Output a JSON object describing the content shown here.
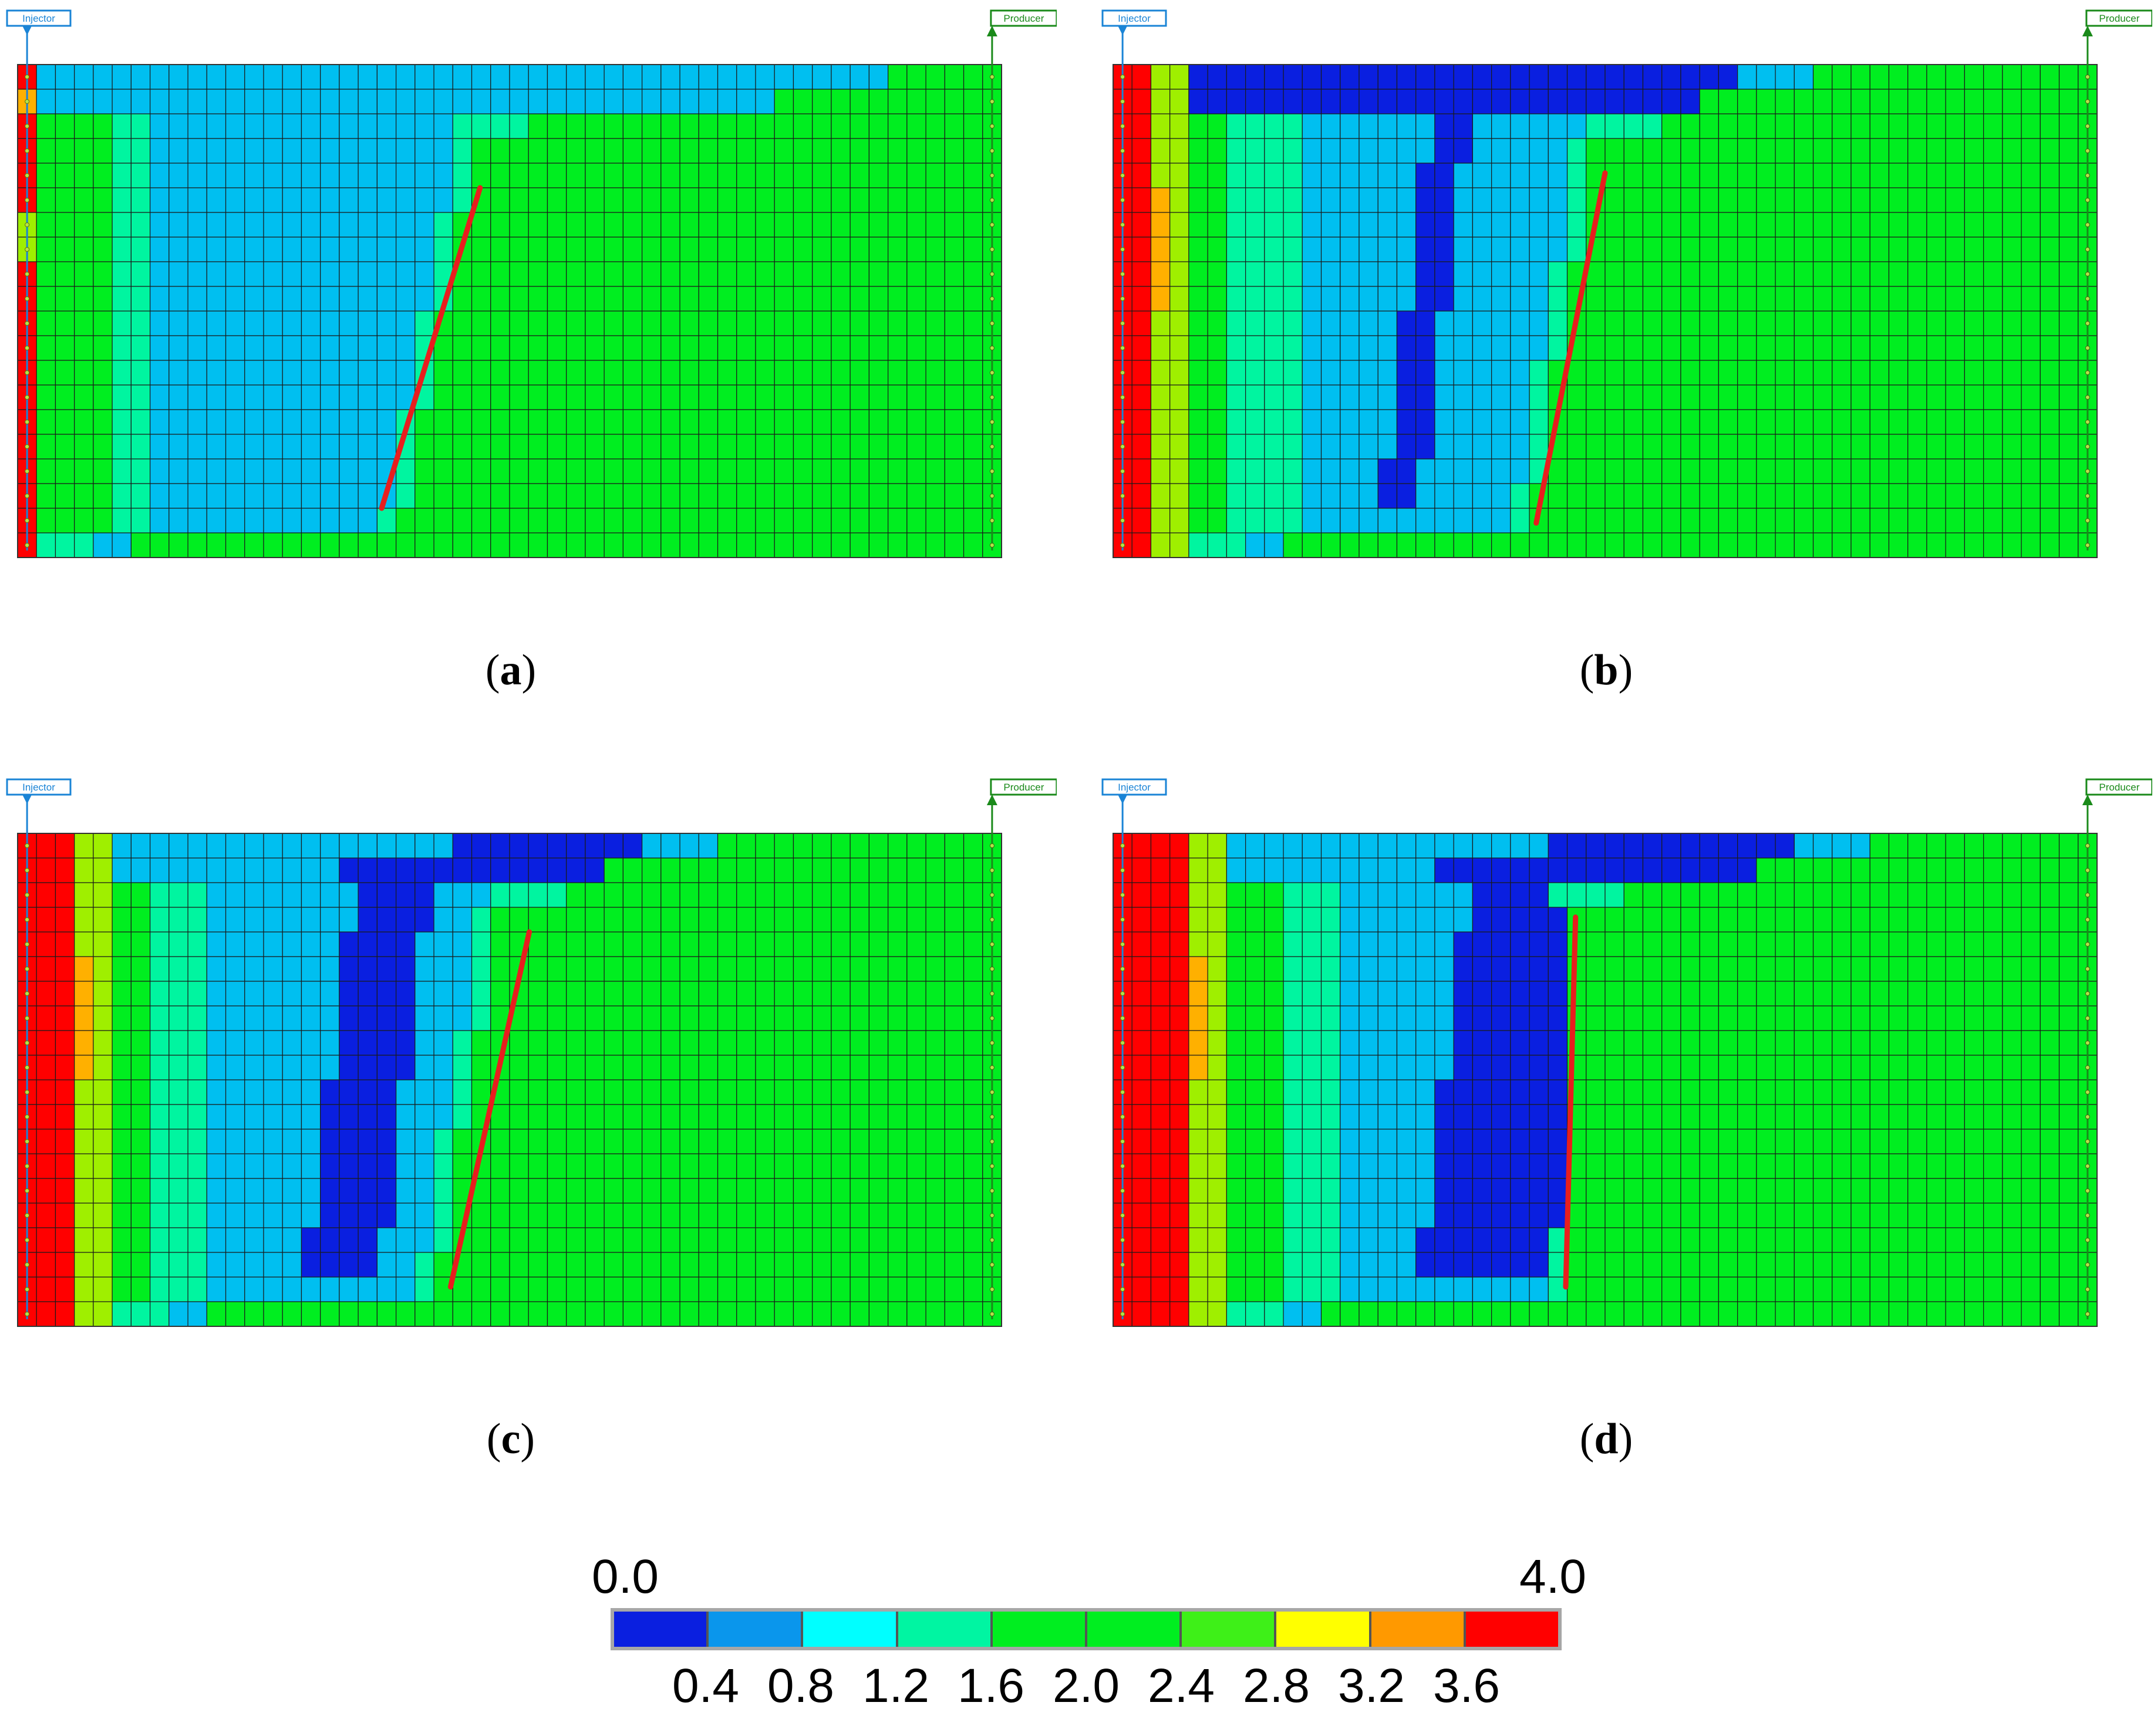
{
  "panels": [
    {
      "id": "a",
      "caption": "a",
      "injector_label": "Injector",
      "producer_label": "Producer"
    },
    {
      "id": "b",
      "caption": "b",
      "injector_label": "Injector",
      "producer_label": "Producer"
    },
    {
      "id": "c",
      "caption": "c",
      "injector_label": "Injector",
      "producer_label": "Producer"
    },
    {
      "id": "d",
      "caption": "d",
      "injector_label": "Injector",
      "producer_label": "Producer"
    }
  ],
  "colorbar": {
    "min_label": "0.0",
    "max_label": "4.0",
    "tick_labels": [
      "0.4",
      "0.8",
      "1.2",
      "1.6",
      "2.0",
      "2.4",
      "2.8",
      "3.2",
      "3.6"
    ],
    "colors": [
      "#0a1fe0",
      "#0a96ec",
      "#00ffff",
      "#00f5a2",
      "#00ee20",
      "#00ee20",
      "#3ef018",
      "#ffff00",
      "#ff9900",
      "#ff0000"
    ]
  },
  "cell_colors": {
    "blue": "#0a1fe0",
    "sky": "#00bff0",
    "teal": "#00f5a0",
    "green": "#00ee20",
    "lime": "#9fef00",
    "yellow": "#f5e800",
    "orange": "#ffb000",
    "red": "#ff0000"
  },
  "well_colors": {
    "injector": "#1a84d6",
    "producer": "#1a8a1a"
  },
  "fracture_color": "#e81e1e"
}
